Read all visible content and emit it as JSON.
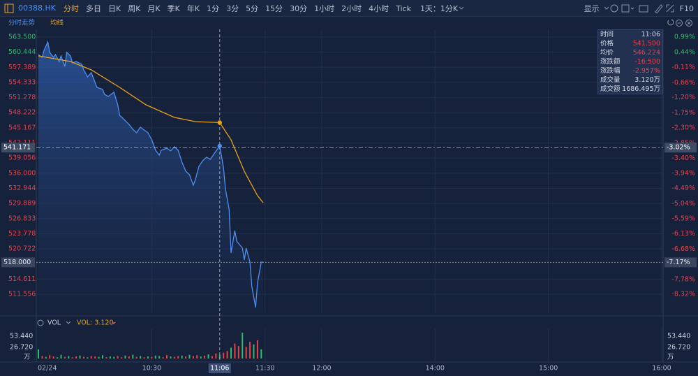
{
  "toolbar": {
    "symbol": "00388.HK",
    "tabs": [
      "分时",
      "多日",
      "日K",
      "周K",
      "月K",
      "季K",
      "年K",
      "1分",
      "3分",
      "5分",
      "15分",
      "30分",
      "1小时",
      "2小时",
      "4小时",
      "Tick"
    ],
    "active_tab": 0,
    "period": "1天：1分K",
    "display": "显示",
    "f10": "F10"
  },
  "chart": {
    "type": "line",
    "xlim": [
      0,
      330
    ],
    "ylim": [
      507.75,
      565.05
    ],
    "y2lim": [
      -9.0,
      1.27
    ],
    "yticks": [
      {
        "value": 563.5,
        "label": "563.500"
      },
      {
        "value": 560.444,
        "label": "560.444"
      },
      {
        "value": 557.389,
        "label": "557.389"
      },
      {
        "value": 554.333,
        "label": "554.333"
      },
      {
        "value": 551.278,
        "label": "551.278"
      },
      {
        "value": 548.222,
        "label": "548.222"
      },
      {
        "value": 545.167,
        "label": "545.167"
      },
      {
        "value": 542.111,
        "label": "542.111"
      },
      {
        "value": 539.056,
        "label": "539.056"
      },
      {
        "value": 536,
        "label": "536.000"
      },
      {
        "value": 532.944,
        "label": "532.944"
      },
      {
        "value": 529.889,
        "label": "529.889"
      },
      {
        "value": 526.833,
        "label": "526.833"
      },
      {
        "value": 523.778,
        "label": "523.778"
      },
      {
        "value": 520.722,
        "label": "520.722"
      },
      {
        "value": 514.611,
        "label": "514.611"
      },
      {
        "value": 511.556,
        "label": "511.556"
      }
    ],
    "y2ticks": [
      {
        "value": 0.99,
        "label": "0.99%"
      },
      {
        "value": 0.44,
        "label": "0.44%"
      },
      {
        "value": -0.11,
        "label": "-0.11%"
      },
      {
        "value": -0.66,
        "label": "-0.66%"
      },
      {
        "value": -1.2,
        "label": "-1.20%"
      },
      {
        "value": -1.75,
        "label": "-1.75%"
      },
      {
        "value": -2.3,
        "label": "-2.30%"
      },
      {
        "value": -2.85,
        "label": "-2.85%"
      },
      {
        "value": -3.4,
        "label": "-3.40%"
      },
      {
        "value": -3.94,
        "label": "-3.94%"
      },
      {
        "value": -4.49,
        "label": "-4.49%"
      },
      {
        "value": -5.04,
        "label": "-5.04%"
      },
      {
        "value": -5.59,
        "label": "-5.59%"
      },
      {
        "value": -6.13,
        "label": "-6.13%"
      },
      {
        "value": -6.68,
        "label": "-6.68%"
      },
      {
        "value": -7.78,
        "label": "-7.78%"
      },
      {
        "value": -8.32,
        "label": "-8.32%"
      }
    ],
    "xticks": [
      {
        "value": 0,
        "label": "02/24"
      },
      {
        "value": 60,
        "label": "10:30"
      },
      {
        "value": 120,
        "label": "11:30"
      },
      {
        "value": 150,
        "label": "12:00"
      },
      {
        "value": 210,
        "label": "14:00"
      },
      {
        "value": 270,
        "label": "15:00"
      },
      {
        "value": 330,
        "label": "16:00"
      }
    ],
    "grid": true,
    "series": [
      {
        "name": "分时走势",
        "color": "#4d8ff0",
        "x": [
          0,
          2,
          3,
          5,
          6,
          8,
          9,
          11,
          12,
          14,
          15,
          17,
          18,
          20,
          23,
          24,
          26,
          28,
          30,
          31,
          34,
          35,
          37,
          40,
          42,
          43,
          45,
          48,
          50,
          52,
          54,
          56,
          58,
          60,
          62,
          64,
          65,
          68,
          70,
          72,
          74,
          76,
          78,
          80,
          82,
          83,
          85,
          87,
          89,
          91,
          93,
          96,
          98,
          99,
          101,
          102,
          104,
          105,
          108,
          109,
          110,
          112,
          113,
          115,
          116,
          117,
          118,
          119
        ],
        "values": [
          559.97,
          559.41,
          560.82,
          562.51,
          560.4,
          559.41,
          559.97,
          558.56,
          559.69,
          557.57,
          560.4,
          559.69,
          558.28,
          558.56,
          557.99,
          556.87,
          555.46,
          556.3,
          554.33,
          553.34,
          552.92,
          551.93,
          551.5,
          552.35,
          549.81,
          547.69,
          546.99,
          545.86,
          544.87,
          544.17,
          545.29,
          544.73,
          544.17,
          542.75,
          540.64,
          539.65,
          540.64,
          541.06,
          540.5,
          541.34,
          540.64,
          538.24,
          536.4,
          535.7,
          533.58,
          534.57,
          537.39,
          538.52,
          539.23,
          538.8,
          539.93,
          541.5,
          537.11,
          532.88,
          528.64,
          519.89,
          524.41,
          522.29,
          520.88,
          518.48,
          520.88,
          518.06,
          513.12,
          508.89,
          513.82,
          515.94,
          518.06,
          518.0
        ]
      },
      {
        "name": "均线",
        "color": "#e8a317",
        "x": [
          0,
          17,
          28,
          43,
          57,
          72,
          83,
          91,
          96,
          102,
          109,
          116,
          119
        ],
        "values": [
          559.69,
          558.56,
          556.87,
          553.34,
          549.81,
          547.27,
          546.42,
          546.3,
          546.224,
          542.75,
          536.4,
          531.47,
          530.05
        ]
      }
    ],
    "crosshair": {
      "price": {
        "value": 541.171,
        "label": "541.171"
      },
      "pct_label": "-3.02%",
      "time": {
        "value": 96,
        "label": "11:06"
      }
    },
    "last_price": {
      "value": 518,
      "label": "518.000",
      "pct_label": "-7.17%",
      "color": "#e8a317"
    },
    "volume": {
      "label": "VOL",
      "value_label": "VOL: 3.120",
      "unit": "万",
      "ylim": [
        0,
        72
      ],
      "yticks": [
        {
          "value": 53.44,
          "label": "53.440"
        },
        {
          "value": 26.72,
          "label": "26.720"
        }
      ],
      "colors": {
        "up": "#e5424b",
        "down": "#2fb96a"
      },
      "x": [
        0,
        2,
        4,
        6,
        8,
        10,
        12,
        14,
        16,
        18,
        20,
        22,
        24,
        26,
        28,
        30,
        32,
        34,
        36,
        38,
        40,
        42,
        44,
        46,
        48,
        50,
        52,
        54,
        56,
        58,
        60,
        62,
        64,
        66,
        68,
        70,
        72,
        74,
        76,
        78,
        80,
        82,
        84,
        86,
        88,
        90,
        92,
        94,
        96,
        98,
        100,
        102,
        104,
        106,
        108,
        110,
        112,
        114,
        116,
        118
      ],
      "values": [
        22,
        6,
        4,
        8,
        5,
        3,
        9,
        4,
        6,
        3,
        5,
        7,
        4,
        3,
        6,
        5,
        4,
        8,
        3,
        5,
        4,
        6,
        3,
        7,
        5,
        9,
        4,
        6,
        3,
        5,
        4,
        7,
        6,
        3,
        8,
        5,
        4,
        6,
        7,
        5,
        9,
        6,
        8,
        5,
        7,
        10,
        6,
        12,
        9,
        14,
        18,
        26,
        36,
        30,
        62,
        28,
        40,
        34,
        44,
        22
      ],
      "up": [
        false,
        true,
        false,
        true,
        true,
        false,
        false,
        true,
        false,
        true,
        true,
        false,
        true,
        false,
        true,
        true,
        false,
        false,
        true,
        false,
        false,
        true,
        true,
        false,
        true,
        false,
        true,
        false,
        true,
        false,
        true,
        false,
        false,
        true,
        true,
        false,
        true,
        true,
        false,
        true,
        false,
        true,
        true,
        false,
        true,
        false,
        true,
        true,
        false,
        true,
        true,
        false,
        true,
        true,
        false,
        true,
        true,
        false,
        true,
        false
      ]
    }
  },
  "info": {
    "rows": [
      [
        "时间",
        "11:06"
      ],
      [
        "价格",
        "541.500"
      ],
      [
        "均价",
        "546.224"
      ],
      [
        "涨跌额",
        "-16.500"
      ],
      [
        "涨跌幅",
        "-2.957%"
      ],
      [
        "成交量",
        "3.120万"
      ],
      [
        "成交额",
        "1686.495万"
      ]
    ]
  }
}
